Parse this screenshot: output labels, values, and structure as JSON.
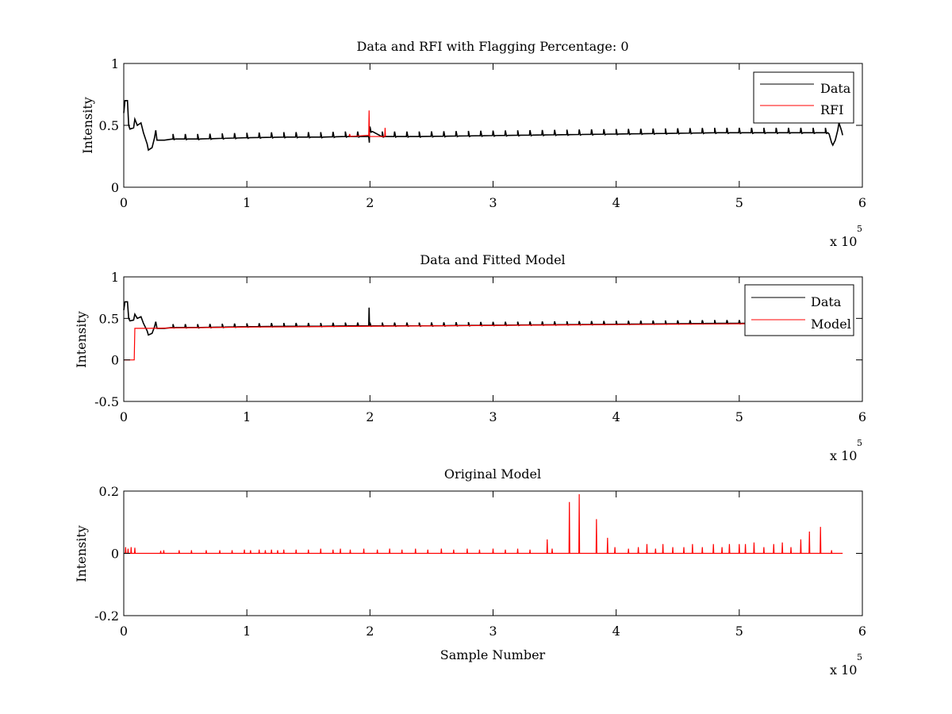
{
  "figure": {
    "background": "#ffffff"
  },
  "colors": {
    "data": "#000000",
    "rfi": "#ff0000",
    "model": "#ff0000",
    "axes": "#000000"
  },
  "chart_data": [
    {
      "type": "line",
      "title": "Data and RFI with Flagging Percentage: 0",
      "xlabel": "",
      "ylabel": "Intensity",
      "xlim": [
        0,
        600000
      ],
      "ylim": [
        0,
        1
      ],
      "xticks": [
        0,
        100000,
        200000,
        300000,
        400000,
        500000,
        600000
      ],
      "xtick_labels": [
        "0",
        "1",
        "2",
        "3",
        "4",
        "5",
        "6"
      ],
      "yticks": [
        0,
        0.5,
        1
      ],
      "ytick_labels": [
        "0",
        "0.5",
        "1"
      ],
      "x_multiplier": {
        "base": "x 10",
        "power": "5"
      },
      "legend": {
        "position": "top-right",
        "entries": [
          "Data",
          "RFI"
        ]
      },
      "grid": false,
      "series": [
        {
          "name": "Data",
          "color": "#000000",
          "points": [
            [
              0,
              0.6
            ],
            [
              1000,
              0.7
            ],
            [
              3000,
              0.7
            ],
            [
              4000,
              0.5
            ],
            [
              5000,
              0.47
            ],
            [
              8000,
              0.48
            ],
            [
              9000,
              0.55
            ],
            [
              11000,
              0.5
            ],
            [
              14000,
              0.52
            ],
            [
              16000,
              0.44
            ],
            [
              19000,
              0.35
            ],
            [
              20000,
              0.3
            ],
            [
              23000,
              0.32
            ],
            [
              25000,
              0.4
            ],
            [
              26000,
              0.46
            ],
            [
              27000,
              0.38
            ],
            [
              33000,
              0.38
            ],
            [
              40000,
              0.39
            ],
            [
              60000,
              0.39
            ],
            [
              80000,
              0.395
            ],
            [
              100000,
              0.4
            ],
            [
              130000,
              0.405
            ],
            [
              160000,
              0.405
            ],
            [
              180000,
              0.41
            ],
            [
              199000,
              0.41
            ],
            [
              199500,
              0.36
            ],
            [
              200000,
              0.45
            ],
            [
              210000,
              0.41
            ],
            [
              240000,
              0.41
            ],
            [
              280000,
              0.415
            ],
            [
              320000,
              0.42
            ],
            [
              360000,
              0.425
            ],
            [
              400000,
              0.43
            ],
            [
              440000,
              0.435
            ],
            [
              480000,
              0.44
            ],
            [
              520000,
              0.44
            ],
            [
              560000,
              0.44
            ],
            [
              570000,
              0.44
            ],
            [
              573000,
              0.43
            ],
            [
              575000,
              0.36
            ],
            [
              576000,
              0.34
            ],
            [
              578000,
              0.38
            ],
            [
              580000,
              0.46
            ],
            [
              581000,
              0.52
            ],
            [
              583000,
              0.46
            ],
            [
              584000,
              0.42
            ]
          ],
          "spike_every": 10000,
          "spike_height": 0.04,
          "spike_from": 40000,
          "spike_to": 575000
        },
        {
          "name": "RFI",
          "color": "#ff0000",
          "points": [
            [
              183000,
              0.41
            ],
            [
              183500,
              0.43
            ],
            [
              184000,
              0.41
            ],
            [
              199000,
              0.42
            ],
            [
              199300,
              0.62
            ],
            [
              199600,
              0.41
            ],
            [
              212000,
              0.41
            ],
            [
              212300,
              0.48
            ],
            [
              212600,
              0.41
            ]
          ]
        }
      ]
    },
    {
      "type": "line",
      "title": "Data and Fitted Model",
      "xlabel": "",
      "ylabel": "Intensity",
      "xlim": [
        0,
        600000
      ],
      "ylim": [
        -0.5,
        1
      ],
      "xticks": [
        0,
        100000,
        200000,
        300000,
        400000,
        500000,
        600000
      ],
      "xtick_labels": [
        "0",
        "1",
        "2",
        "3",
        "4",
        "5",
        "6"
      ],
      "yticks": [
        -0.5,
        0,
        0.5,
        1
      ],
      "ytick_labels": [
        "-0.5",
        "0",
        "0.5",
        "1"
      ],
      "x_multiplier": {
        "base": "x 10",
        "power": "5"
      },
      "legend": {
        "position": "top-right",
        "entries": [
          "Data",
          "Model"
        ]
      },
      "grid": false,
      "series": [
        {
          "name": "Data",
          "color": "#000000",
          "points": [
            [
              0,
              0.6
            ],
            [
              1000,
              0.7
            ],
            [
              3000,
              0.7
            ],
            [
              4000,
              0.5
            ],
            [
              5000,
              0.47
            ],
            [
              8000,
              0.48
            ],
            [
              9000,
              0.55
            ],
            [
              11000,
              0.5
            ],
            [
              14000,
              0.52
            ],
            [
              16000,
              0.44
            ],
            [
              19000,
              0.35
            ],
            [
              20000,
              0.3
            ],
            [
              23000,
              0.32
            ],
            [
              25000,
              0.4
            ],
            [
              26000,
              0.46
            ],
            [
              27000,
              0.38
            ],
            [
              33000,
              0.38
            ],
            [
              40000,
              0.39
            ],
            [
              60000,
              0.39
            ],
            [
              80000,
              0.395
            ],
            [
              100000,
              0.4
            ],
            [
              130000,
              0.405
            ],
            [
              160000,
              0.405
            ],
            [
              180000,
              0.41
            ],
            [
              199000,
              0.41
            ],
            [
              199300,
              0.63
            ],
            [
              199600,
              0.41
            ],
            [
              210000,
              0.41
            ],
            [
              240000,
              0.41
            ],
            [
              280000,
              0.415
            ],
            [
              320000,
              0.42
            ],
            [
              360000,
              0.425
            ],
            [
              400000,
              0.43
            ],
            [
              440000,
              0.435
            ],
            [
              480000,
              0.44
            ],
            [
              520000,
              0.44
            ],
            [
              560000,
              0.44
            ],
            [
              584000,
              0.44
            ]
          ],
          "spike_every": 10000,
          "spike_height": 0.04,
          "spike_from": 40000,
          "spike_to": 575000
        },
        {
          "name": "Model",
          "color": "#ff0000",
          "points": [
            [
              0,
              0
            ],
            [
              8000,
              0
            ],
            [
              8500,
              0.0
            ],
            [
              9000,
              0.38
            ],
            [
              20000,
              0.38
            ],
            [
              40000,
              0.385
            ],
            [
              100000,
              0.395
            ],
            [
              200000,
              0.405
            ],
            [
              300000,
              0.415
            ],
            [
              400000,
              0.425
            ],
            [
              500000,
              0.435
            ],
            [
              584000,
              0.44
            ]
          ]
        }
      ]
    },
    {
      "type": "line",
      "title": "Original Model",
      "xlabel": "Sample Number",
      "ylabel": "Intensity",
      "xlim": [
        0,
        600000
      ],
      "ylim": [
        -0.2,
        0.2
      ],
      "xticks": [
        0,
        100000,
        200000,
        300000,
        400000,
        500000,
        600000
      ],
      "xtick_labels": [
        "0",
        "1",
        "2",
        "3",
        "4",
        "5",
        "6"
      ],
      "yticks": [
        -0.2,
        0,
        0.2
      ],
      "ytick_labels": [
        "-0.2",
        "0",
        "0.2"
      ],
      "x_multiplier": {
        "base": "x 10",
        "power": "5"
      },
      "legend": null,
      "grid": false,
      "series": [
        {
          "name": "",
          "color": "#ff0000",
          "baseline": 0,
          "x_end": 584000,
          "spikes": [
            [
              1500,
              0.02
            ],
            [
              3500,
              0.015
            ],
            [
              6000,
              0.02
            ],
            [
              9000,
              0.018
            ],
            [
              30000,
              0.008
            ],
            [
              32500,
              0.01
            ],
            [
              45000,
              0.01
            ],
            [
              55000,
              0.01
            ],
            [
              67000,
              0.01
            ],
            [
              78000,
              0.01
            ],
            [
              88000,
              0.01
            ],
            [
              98000,
              0.012
            ],
            [
              103000,
              0.01
            ],
            [
              110000,
              0.012
            ],
            [
              115000,
              0.01
            ],
            [
              120000,
              0.012
            ],
            [
              125000,
              0.01
            ],
            [
              130000,
              0.012
            ],
            [
              140000,
              0.012
            ],
            [
              150000,
              0.012
            ],
            [
              160000,
              0.015
            ],
            [
              170000,
              0.012
            ],
            [
              176000,
              0.015
            ],
            [
              184000,
              0.012
            ],
            [
              195000,
              0.015
            ],
            [
              206000,
              0.012
            ],
            [
              216000,
              0.015
            ],
            [
              226000,
              0.012
            ],
            [
              237000,
              0.015
            ],
            [
              247000,
              0.012
            ],
            [
              258000,
              0.015
            ],
            [
              268000,
              0.012
            ],
            [
              279000,
              0.015
            ],
            [
              289000,
              0.012
            ],
            [
              300000,
              0.015
            ],
            [
              310000,
              0.012
            ],
            [
              320000,
              0.015
            ],
            [
              330000,
              0.012
            ],
            [
              344000,
              0.045
            ],
            [
              348000,
              0.015
            ],
            [
              362000,
              0.165
            ],
            [
              370000,
              0.19
            ],
            [
              384000,
              0.11
            ],
            [
              393000,
              0.05
            ],
            [
              399000,
              0.02
            ],
            [
              410000,
              0.015
            ],
            [
              418000,
              0.02
            ],
            [
              425000,
              0.03
            ],
            [
              432000,
              0.015
            ],
            [
              438000,
              0.03
            ],
            [
              446000,
              0.02
            ],
            [
              455000,
              0.02
            ],
            [
              462000,
              0.03
            ],
            [
              470000,
              0.02
            ],
            [
              479000,
              0.03
            ],
            [
              486000,
              0.02
            ],
            [
              492000,
              0.03
            ],
            [
              500000,
              0.03
            ],
            [
              505000,
              0.03
            ],
            [
              512000,
              0.035
            ],
            [
              520000,
              0.02
            ],
            [
              528000,
              0.03
            ],
            [
              535000,
              0.035
            ],
            [
              542000,
              0.02
            ],
            [
              550000,
              0.045
            ],
            [
              557000,
              0.07
            ],
            [
              566000,
              0.085
            ],
            [
              575000,
              0.01
            ]
          ]
        }
      ]
    }
  ]
}
